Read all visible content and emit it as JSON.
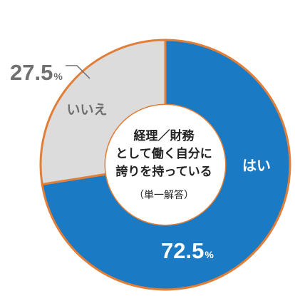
{
  "chart_data": {
    "type": "pie",
    "variant": "donut",
    "center_text": {
      "lines": [
        "経理／財務",
        "として働く自分に",
        "誇りを持っている"
      ],
      "note": "（単一解答）"
    },
    "slices": [
      {
        "label": "はい",
        "value": 72.5,
        "value_text": "72.5",
        "unit": "%",
        "color": "#1a7ac4"
      },
      {
        "label": "いいえ",
        "value": 27.5,
        "value_text": "27.5",
        "unit": "%",
        "color": "#dcdcdc"
      }
    ],
    "outline_color": "#e07f3a",
    "label_colors": {
      "yes_slice_label": "#ffffff",
      "no_slice_label": "#707070",
      "center_text": "#222222"
    }
  }
}
